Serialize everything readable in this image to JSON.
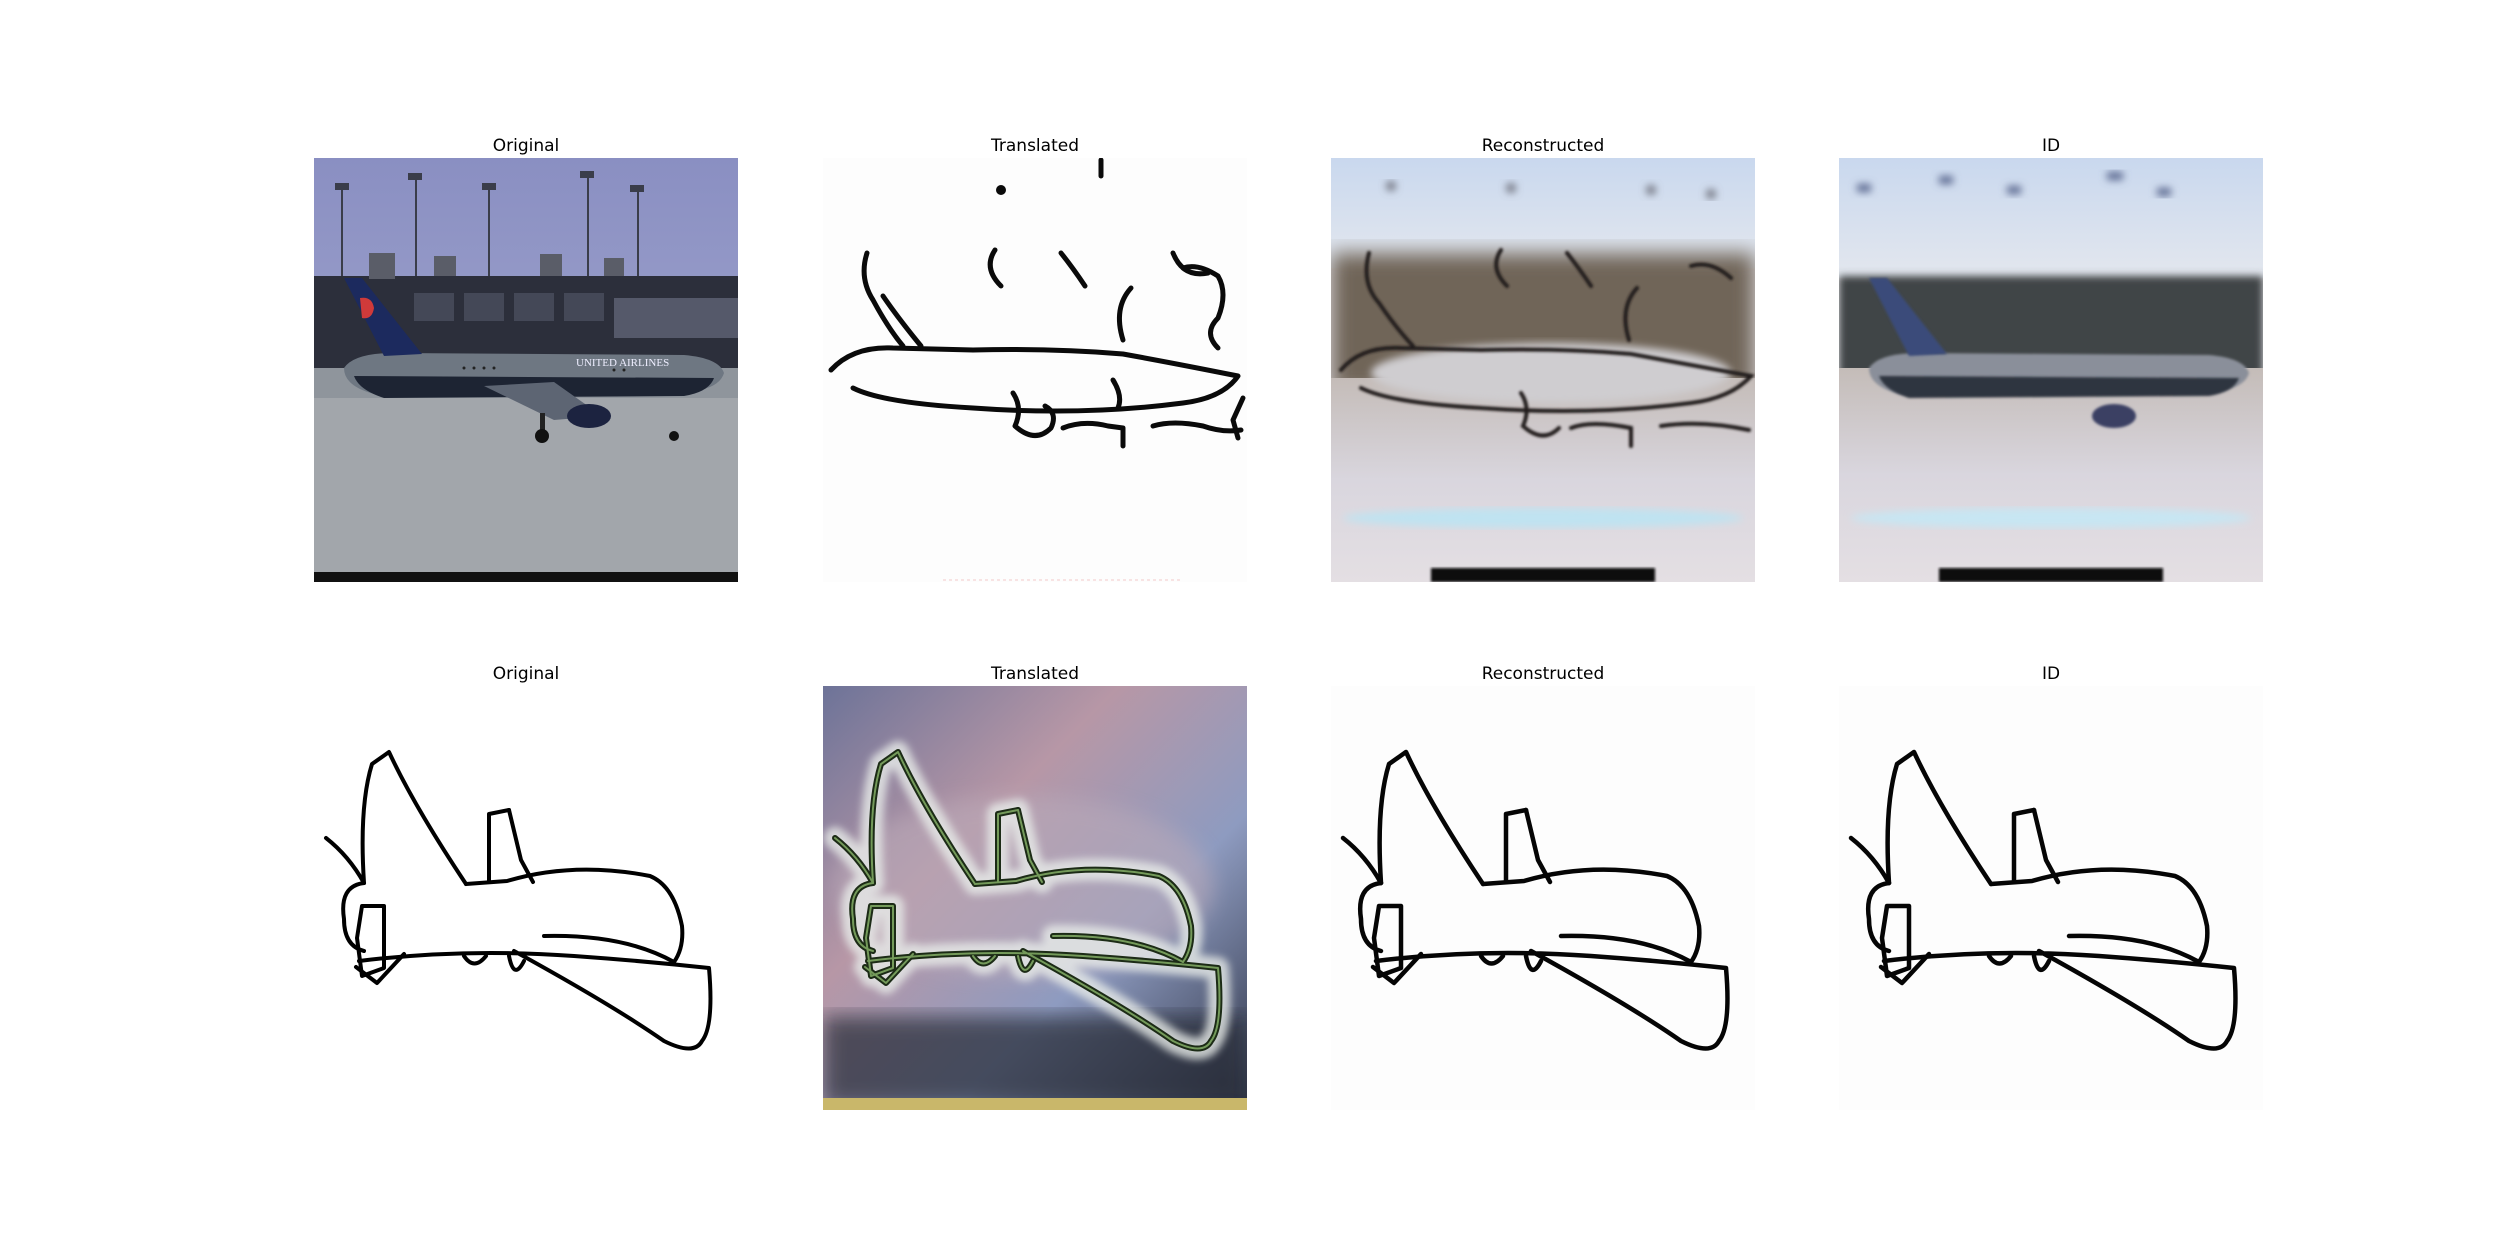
{
  "figure": {
    "rows": [
      {
        "panels": [
          {
            "title": "Original"
          },
          {
            "title": "Translated"
          },
          {
            "title": "Reconstructed"
          },
          {
            "title": "ID"
          }
        ]
      },
      {
        "panels": [
          {
            "title": "Original"
          },
          {
            "title": "Translated"
          },
          {
            "title": "Reconstructed"
          },
          {
            "title": "ID"
          }
        ]
      }
    ],
    "airline_livery": "UNITED AIRLINES"
  }
}
